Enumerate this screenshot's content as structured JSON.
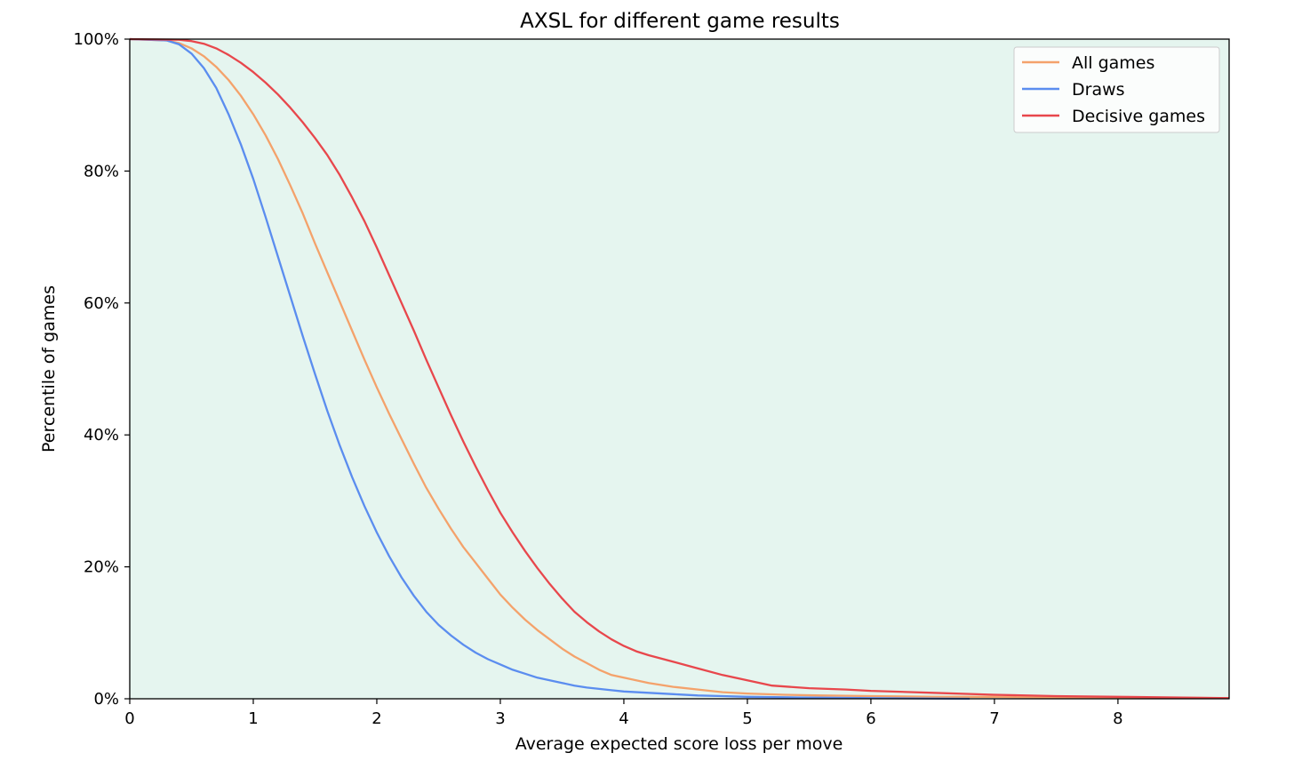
{
  "chart_data": {
    "type": "line",
    "title": "AXSL for different game results",
    "xlabel": "Average expected score loss per move",
    "ylabel": "Percentile of games",
    "xlim": [
      0,
      8.9
    ],
    "ylim": [
      0,
      100
    ],
    "xticks": [
      0,
      1,
      2,
      3,
      4,
      5,
      6,
      7,
      8
    ],
    "yticks": [
      0,
      20,
      40,
      60,
      80,
      100
    ],
    "ytick_labels": [
      "0%",
      "20%",
      "40%",
      "60%",
      "80%",
      "100%"
    ],
    "plot_background": "#e5f5ef",
    "grid": false,
    "legend_position": "top-right",
    "series": [
      {
        "name": "All games",
        "color": "#f4a26b",
        "x": [
          0,
          0.3,
          0.4,
          0.5,
          0.6,
          0.7,
          0.8,
          0.9,
          1.0,
          1.1,
          1.2,
          1.3,
          1.4,
          1.5,
          1.6,
          1.7,
          1.8,
          1.9,
          2.0,
          2.1,
          2.2,
          2.3,
          2.4,
          2.5,
          2.6,
          2.7,
          2.8,
          2.9,
          3.0,
          3.1,
          3.2,
          3.3,
          3.4,
          3.5,
          3.6,
          3.7,
          3.8,
          3.9,
          4.0,
          4.2,
          4.4,
          4.6,
          4.8,
          5.0,
          5.3,
          5.6,
          6.0,
          6.5,
          7.0,
          7.5,
          8.0,
          8.9
        ],
        "y": [
          100,
          99.8,
          99.4,
          98.6,
          97.4,
          95.8,
          93.8,
          91.4,
          88.6,
          85.4,
          81.8,
          77.8,
          73.6,
          69.0,
          64.6,
          60.2,
          55.8,
          51.4,
          47.2,
          43.2,
          39.4,
          35.6,
          32.0,
          28.8,
          25.8,
          23.0,
          20.6,
          18.2,
          15.8,
          13.8,
          12.0,
          10.4,
          9.0,
          7.6,
          6.4,
          5.4,
          4.4,
          3.6,
          3.2,
          2.4,
          1.8,
          1.4,
          1.0,
          0.8,
          0.6,
          0.5,
          0.4,
          0.3,
          0.3,
          0.2,
          0.2,
          0.1
        ]
      },
      {
        "name": "Draws",
        "color": "#5b8def",
        "x": [
          0,
          0.3,
          0.4,
          0.5,
          0.6,
          0.7,
          0.8,
          0.9,
          1.0,
          1.1,
          1.2,
          1.3,
          1.4,
          1.5,
          1.6,
          1.7,
          1.8,
          1.9,
          2.0,
          2.1,
          2.2,
          2.3,
          2.4,
          2.5,
          2.6,
          2.7,
          2.8,
          2.9,
          3.0,
          3.1,
          3.2,
          3.3,
          3.4,
          3.5,
          3.6,
          3.7,
          3.8,
          3.9,
          4.0,
          4.2,
          4.4,
          4.6,
          4.8,
          5.0,
          5.4,
          6.0,
          6.8
        ],
        "y": [
          100,
          99.8,
          99.2,
          97.8,
          95.6,
          92.6,
          88.6,
          84.0,
          78.8,
          73.0,
          67.0,
          61.0,
          55.0,
          49.2,
          43.6,
          38.4,
          33.6,
          29.2,
          25.2,
          21.6,
          18.4,
          15.6,
          13.2,
          11.2,
          9.6,
          8.2,
          7.0,
          6.0,
          5.2,
          4.4,
          3.8,
          3.2,
          2.8,
          2.4,
          2.0,
          1.7,
          1.5,
          1.3,
          1.1,
          0.9,
          0.7,
          0.5,
          0.4,
          0.3,
          0.2,
          0.1,
          0.0
        ]
      },
      {
        "name": "Decisive games",
        "color": "#e8474c",
        "x": [
          0,
          0.4,
          0.5,
          0.6,
          0.7,
          0.8,
          0.9,
          1.0,
          1.1,
          1.2,
          1.3,
          1.4,
          1.5,
          1.6,
          1.7,
          1.8,
          1.9,
          2.0,
          2.1,
          2.2,
          2.3,
          2.4,
          2.5,
          2.6,
          2.7,
          2.8,
          2.9,
          3.0,
          3.1,
          3.2,
          3.3,
          3.4,
          3.5,
          3.6,
          3.7,
          3.8,
          3.9,
          4.0,
          4.1,
          4.2,
          4.4,
          4.6,
          4.8,
          5.0,
          5.2,
          5.5,
          5.8,
          6.0,
          6.5,
          7.0,
          7.5,
          8.0,
          8.9
        ],
        "y": [
          100,
          99.9,
          99.7,
          99.3,
          98.6,
          97.6,
          96.4,
          95.0,
          93.4,
          91.6,
          89.6,
          87.4,
          85.0,
          82.4,
          79.4,
          76.0,
          72.4,
          68.4,
          64.2,
          60.0,
          55.8,
          51.4,
          47.2,
          43.0,
          39.0,
          35.2,
          31.6,
          28.2,
          25.2,
          22.4,
          19.8,
          17.4,
          15.2,
          13.2,
          11.6,
          10.2,
          9.0,
          8.0,
          7.2,
          6.6,
          5.6,
          4.6,
          3.6,
          2.8,
          2.0,
          1.6,
          1.4,
          1.2,
          0.9,
          0.6,
          0.4,
          0.3,
          0.1
        ]
      }
    ]
  }
}
